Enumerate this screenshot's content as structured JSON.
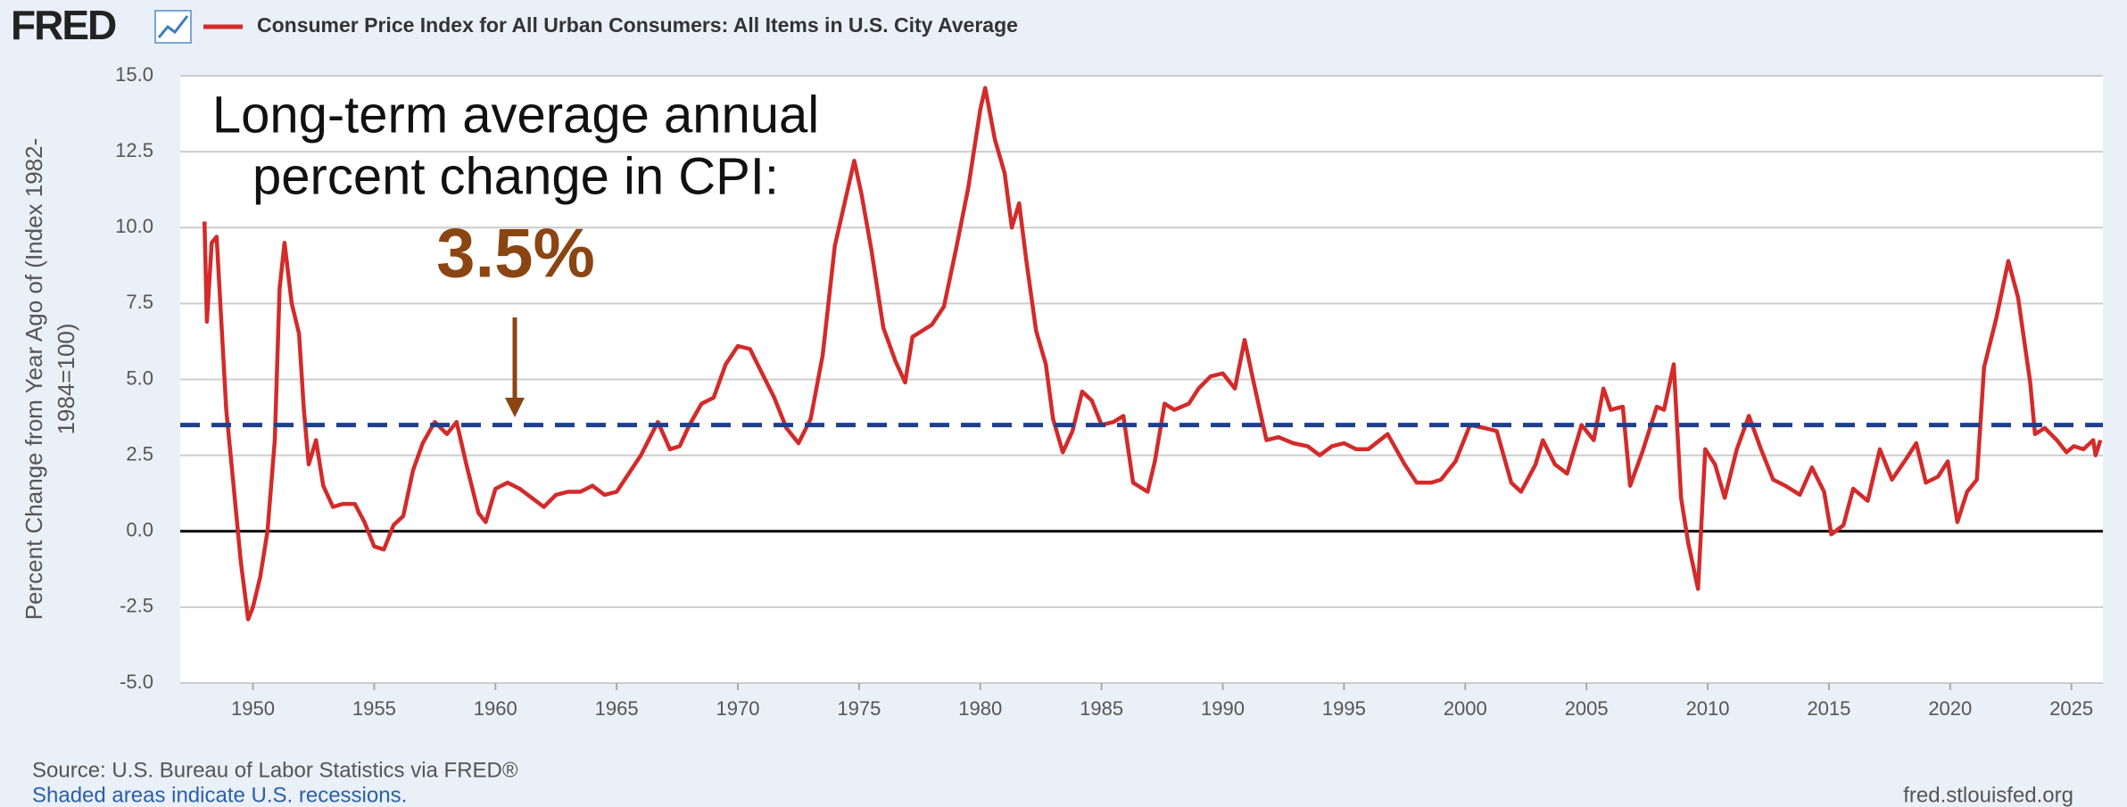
{
  "logo": "FRED",
  "chart_data": {
    "type": "line",
    "ylabel": [
      "Percent Change from Year Ago of (Index 1982-",
      "1984=100)"
    ],
    "annotation": [
      "Long-term average annual",
      "percent change in CPI:"
    ],
    "average": {
      "value": 3.5,
      "label": "3.5%",
      "color": "#1f3f8c"
    },
    "xlim": [
      1947,
      2026.3
    ],
    "xticks": [
      1950,
      1955,
      1960,
      1965,
      1970,
      1975,
      1980,
      1985,
      1990,
      1995,
      2000,
      2005,
      2010,
      2015,
      2020,
      2025
    ],
    "ylim": [
      -5,
      15
    ],
    "yticks": [
      {
        "value": -5,
        "label": "-5.0"
      },
      {
        "value": -2.5,
        "label": "-2.5"
      },
      {
        "value": 0,
        "label": "0.0"
      },
      {
        "value": 2.5,
        "label": "2.5"
      },
      {
        "value": 5,
        "label": "5.0"
      },
      {
        "value": 7.5,
        "label": "7.5"
      },
      {
        "value": 10,
        "label": "10.0"
      },
      {
        "value": 12.5,
        "label": "12.5"
      },
      {
        "value": 15,
        "label": "15.0"
      }
    ],
    "grid": true,
    "x": [
      1948.0,
      1948.1,
      1948.3,
      1948.5,
      1948.9,
      1949.2,
      1949.5,
      1949.8,
      1950.0,
      1950.3,
      1950.6,
      1950.9,
      1951.1,
      1951.3,
      1951.6,
      1951.9,
      1952.1,
      1952.3,
      1952.6,
      1952.9,
      1953.3,
      1953.7,
      1954.2,
      1954.6,
      1955.0,
      1955.4,
      1955.8,
      1956.2,
      1956.6,
      1957.0,
      1957.5,
      1958.0,
      1958.4,
      1958.8,
      1959.3,
      1959.6,
      1960.0,
      1960.5,
      1961.0,
      1961.5,
      1962.0,
      1962.5,
      1963.0,
      1963.5,
      1964.0,
      1964.5,
      1965.0,
      1965.5,
      1966.0,
      1966.7,
      1967.2,
      1967.6,
      1968.0,
      1968.5,
      1969.0,
      1969.5,
      1970.0,
      1970.5,
      1971.0,
      1971.5,
      1972.0,
      1972.5,
      1973.0,
      1973.5,
      1974.0,
      1974.4,
      1974.8,
      1975.1,
      1975.5,
      1976.0,
      1976.5,
      1976.9,
      1977.2,
      1977.6,
      1978.0,
      1978.5,
      1979.0,
      1979.5,
      1980.0,
      1980.2,
      1980.6,
      1981.0,
      1981.3,
      1981.6,
      1981.9,
      1982.3,
      1982.7,
      1983.0,
      1983.4,
      1983.8,
      1984.2,
      1984.6,
      1985.0,
      1985.5,
      1985.9,
      1986.3,
      1986.9,
      1987.2,
      1987.6,
      1988.0,
      1988.6,
      1989.0,
      1989.5,
      1990.0,
      1990.5,
      1990.9,
      1991.3,
      1991.8,
      1992.3,
      1992.9,
      1993.5,
      1994.0,
      1994.5,
      1995.0,
      1995.5,
      1996.0,
      1996.8,
      1997.5,
      1998.0,
      1998.6,
      1999.0,
      1999.6,
      2000.2,
      2000.8,
      2001.3,
      2001.9,
      2002.3,
      2002.9,
      2003.2,
      2003.7,
      2004.2,
      2004.8,
      2005.3,
      2005.7,
      2006.0,
      2006.5,
      2006.8,
      2007.3,
      2007.9,
      2008.2,
      2008.6,
      2008.9,
      2009.2,
      2009.6,
      2009.9,
      2010.3,
      2010.7,
      2011.2,
      2011.7,
      2012.2,
      2012.7,
      2013.2,
      2013.8,
      2014.3,
      2014.8,
      2015.1,
      2015.6,
      2016.0,
      2016.6,
      2017.1,
      2017.6,
      2018.2,
      2018.6,
      2019.0,
      2019.5,
      2019.9,
      2020.3,
      2020.7,
      2021.1,
      2021.4,
      2021.9,
      2022.4,
      2022.8,
      2023.3,
      2023.5,
      2023.9,
      2024.4,
      2024.8,
      2025.1,
      2025.5,
      2025.9,
      2026.0,
      2026.2
    ],
    "series": [
      {
        "name": "Consumer Price Index for All Urban Consumers: All Items in U.S. City Average",
        "color": "#d42a2a",
        "values": [
          10.2,
          6.9,
          9.5,
          9.7,
          4,
          1.5,
          -1,
          -2.9,
          -2.5,
          -1.5,
          0,
          3,
          8,
          9.5,
          7.5,
          6.5,
          4,
          2.2,
          3,
          1.5,
          0.8,
          0.9,
          0.9,
          0.3,
          -0.5,
          -0.6,
          0.2,
          0.5,
          2,
          2.9,
          3.6,
          3.2,
          3.6,
          2.2,
          0.6,
          0.3,
          1.4,
          1.6,
          1.4,
          1.1,
          0.8,
          1.2,
          1.3,
          1.3,
          1.5,
          1.2,
          1.3,
          1.9,
          2.5,
          3.6,
          2.7,
          2.8,
          3.5,
          4.2,
          4.4,
          5.5,
          6.1,
          6,
          5.2,
          4.4,
          3.4,
          2.9,
          3.7,
          5.8,
          9.4,
          10.8,
          12.2,
          11.1,
          9.3,
          6.7,
          5.6,
          4.9,
          6.4,
          6.6,
          6.8,
          7.4,
          9.3,
          11.3,
          13.9,
          14.6,
          12.9,
          11.8,
          10,
          10.8,
          8.9,
          6.6,
          5.5,
          3.7,
          2.6,
          3.3,
          4.6,
          4.3,
          3.5,
          3.6,
          3.8,
          1.6,
          1.3,
          2.3,
          4.2,
          4,
          4.2,
          4.7,
          5.1,
          5.2,
          4.7,
          6.3,
          4.8,
          3,
          3.1,
          2.9,
          2.8,
          2.5,
          2.8,
          2.9,
          2.7,
          2.7,
          3.2,
          2.2,
          1.6,
          1.6,
          1.7,
          2.3,
          3.5,
          3.4,
          3.3,
          1.6,
          1.3,
          2.2,
          3,
          2.2,
          1.9,
          3.5,
          3,
          4.7,
          4,
          4.1,
          1.5,
          2.6,
          4.1,
          4,
          5.5,
          1.1,
          -0.4,
          -1.9,
          2.7,
          2.2,
          1.1,
          2.7,
          3.8,
          2.7,
          1.7,
          1.5,
          1.2,
          2.1,
          1.3,
          -0.1,
          0.2,
          1.4,
          1,
          2.7,
          1.7,
          2.4,
          2.9,
          1.6,
          1.8,
          2.3,
          0.3,
          1.3,
          1.7,
          5.4,
          7,
          8.9,
          7.7,
          4.9,
          3.2,
          3.4,
          3,
          2.6,
          2.8,
          2.7,
          3.0,
          2.5,
          3.0
        ]
      }
    ]
  },
  "footer": {
    "source": "Source: U.S. Bureau of Labor Statistics via FRED®",
    "note": "Shaded areas indicate U.S. recessions.",
    "site": "fred.stlouisfed.org"
  }
}
